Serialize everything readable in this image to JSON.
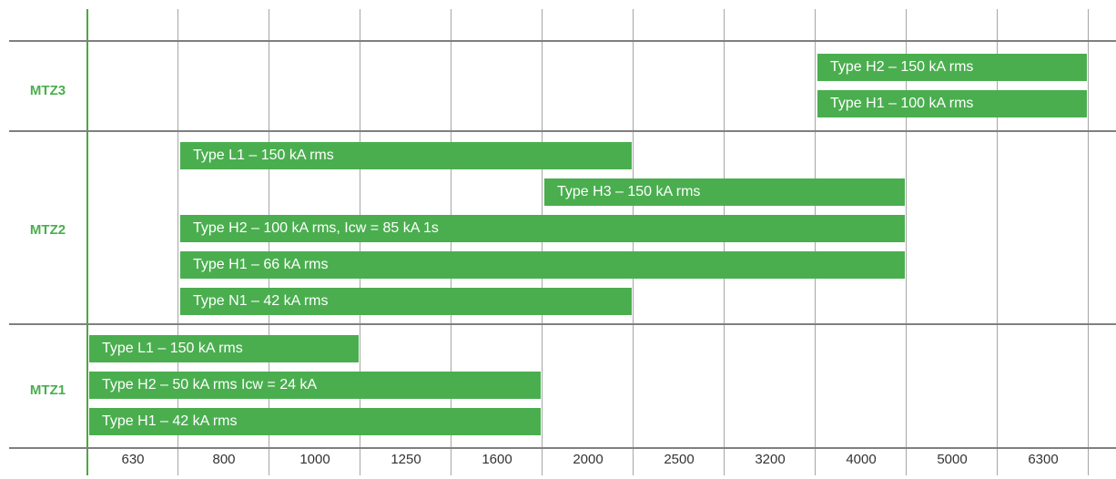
{
  "chart_data": {
    "type": "bar",
    "orientation": "horizontal-range",
    "x_categories": [
      "630",
      "800",
      "1000",
      "1250",
      "1600",
      "2000",
      "2500",
      "3200",
      "4000",
      "5000",
      "6300"
    ],
    "groups": [
      {
        "name": "MTZ3",
        "bars": [
          {
            "label": "Type H2 – 150 kA rms",
            "from": "4000",
            "to": "6300"
          },
          {
            "label": "Type H1 – 100 kA rms",
            "from": "4000",
            "to": "6300"
          }
        ]
      },
      {
        "name": "MTZ2",
        "bars": [
          {
            "label": "Type L1 – 150 kA rms",
            "from": "800",
            "to": "2000"
          },
          {
            "label": "Type H3 – 150 kA rms",
            "from": "2000",
            "to": "4000"
          },
          {
            "label": "Type H2 – 100 kA rms, Icw = 85 kA 1s",
            "from": "800",
            "to": "4000"
          },
          {
            "label": "Type H1 – 66 kA rms",
            "from": "800",
            "to": "4000"
          },
          {
            "label": "Type N1 – 42 kA rms",
            "from": "800",
            "to": "2000"
          }
        ]
      },
      {
        "name": "MTZ1",
        "bars": [
          {
            "label": "Type L1 – 150 kA rms",
            "from": "630",
            "to": "1000"
          },
          {
            "label": "Type H2 – 50 kA rms Icw = 24 kA",
            "from": "630",
            "to": "1600"
          },
          {
            "label": "Type H1 – 42 kA rms",
            "from": "630",
            "to": "1600"
          }
        ]
      }
    ],
    "bar_color": "#4aae4f",
    "label_color": "#4aae4f",
    "grid": true
  }
}
